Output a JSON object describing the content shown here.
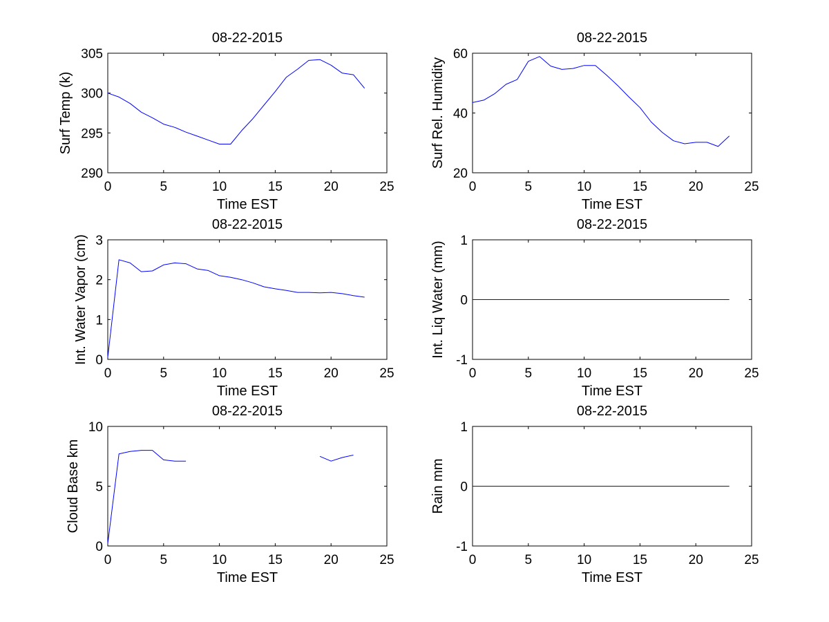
{
  "figure": {
    "background": "#ffffff",
    "line_color": "#0000ff"
  },
  "chart_data": [
    {
      "type": "line",
      "title": "08-22-2015",
      "xlabel": "Time EST",
      "ylabel": "Surf Temp (k)",
      "xlim": [
        0,
        25
      ],
      "ylim": [
        290,
        305
      ],
      "xticks": [
        0,
        5,
        10,
        15,
        20,
        25
      ],
      "yticks": [
        290,
        295,
        300,
        305
      ],
      "x": [
        0,
        1,
        2,
        3,
        4,
        5,
        6,
        7,
        8,
        9,
        10,
        11,
        12,
        13,
        14,
        15,
        16,
        17,
        18,
        19,
        20,
        21,
        22,
        23
      ],
      "y": [
        300.0,
        299.5,
        298.7,
        297.6,
        296.9,
        296.1,
        295.7,
        295.1,
        294.6,
        294.1,
        293.6,
        293.6,
        295.3,
        296.8,
        298.5,
        300.2,
        302.0,
        303.0,
        304.1,
        304.2,
        303.5,
        302.5,
        302.3,
        300.6
      ]
    },
    {
      "type": "line",
      "title": "08-22-2015",
      "xlabel": "Time EST",
      "ylabel": "Surf Rel. Humidity",
      "xlim": [
        0,
        25
      ],
      "ylim": [
        20,
        60
      ],
      "xticks": [
        0,
        5,
        10,
        15,
        20,
        25
      ],
      "yticks": [
        20,
        40,
        60
      ],
      "x": [
        0,
        1,
        2,
        3,
        4,
        5,
        6,
        7,
        8,
        9,
        10,
        11,
        12,
        13,
        14,
        15,
        16,
        17,
        18,
        19,
        20,
        21,
        22,
        23
      ],
      "y": [
        43.5,
        44.3,
        46.5,
        49.6,
        51.2,
        57.3,
        58.9,
        55.7,
        54.6,
        54.9,
        55.9,
        55.9,
        52.7,
        49.2,
        45.4,
        41.8,
        37.0,
        33.5,
        30.7,
        29.7,
        30.2,
        30.2,
        28.8,
        32.3
      ]
    },
    {
      "type": "line",
      "title": "08-22-2015",
      "xlabel": "Time EST",
      "ylabel": "Int. Water Vapor (cm)",
      "xlim": [
        0,
        25
      ],
      "ylim": [
        0,
        3
      ],
      "xticks": [
        0,
        5,
        10,
        15,
        20,
        25
      ],
      "yticks": [
        0,
        1,
        2,
        3
      ],
      "x": [
        0,
        1,
        2,
        3,
        4,
        5,
        6,
        7,
        8,
        9,
        10,
        11,
        12,
        13,
        14,
        15,
        16,
        17,
        18,
        19,
        20,
        21,
        22,
        23
      ],
      "y": [
        0.05,
        2.5,
        2.42,
        2.2,
        2.22,
        2.37,
        2.42,
        2.4,
        2.27,
        2.23,
        2.1,
        2.06,
        2.0,
        1.92,
        1.82,
        1.77,
        1.73,
        1.68,
        1.68,
        1.67,
        1.68,
        1.65,
        1.6,
        1.56
      ]
    },
    {
      "type": "line",
      "title": "08-22-2015",
      "xlabel": "Time EST",
      "ylabel": "Int. Liq Water (mm)",
      "xlim": [
        0,
        25
      ],
      "ylim": [
        -1,
        1
      ],
      "xticks": [
        0,
        5,
        10,
        15,
        20,
        25
      ],
      "yticks": [
        -1,
        0,
        1
      ],
      "x": [
        0,
        23
      ],
      "y": [
        0,
        0
      ]
    },
    {
      "type": "line",
      "title": "08-22-2015",
      "xlabel": "Time EST",
      "ylabel": "Cloud Base km",
      "xlim": [
        0,
        25
      ],
      "ylim": [
        0,
        10
      ],
      "xticks": [
        0,
        5,
        10,
        15,
        20,
        25
      ],
      "yticks": [
        0,
        5,
        10
      ],
      "x": [
        0,
        1,
        2,
        3,
        4,
        5,
        6,
        7,
        8,
        9,
        10,
        11,
        12,
        13,
        14,
        15,
        16,
        17,
        18,
        19,
        20,
        21,
        22
      ],
      "y": [
        0.2,
        7.7,
        7.9,
        8.0,
        8.0,
        7.2,
        7.1,
        7.1,
        null,
        null,
        null,
        null,
        null,
        null,
        null,
        null,
        null,
        null,
        null,
        7.5,
        7.1,
        7.4,
        7.6
      ]
    },
    {
      "type": "line",
      "title": "08-22-2015",
      "xlabel": "Time EST",
      "ylabel": "Rain mm",
      "xlim": [
        0,
        25
      ],
      "ylim": [
        -1,
        1
      ],
      "xticks": [
        0,
        5,
        10,
        15,
        20,
        25
      ],
      "yticks": [
        -1,
        0,
        1
      ],
      "x": [
        0,
        23
      ],
      "y": [
        0,
        0
      ]
    }
  ]
}
